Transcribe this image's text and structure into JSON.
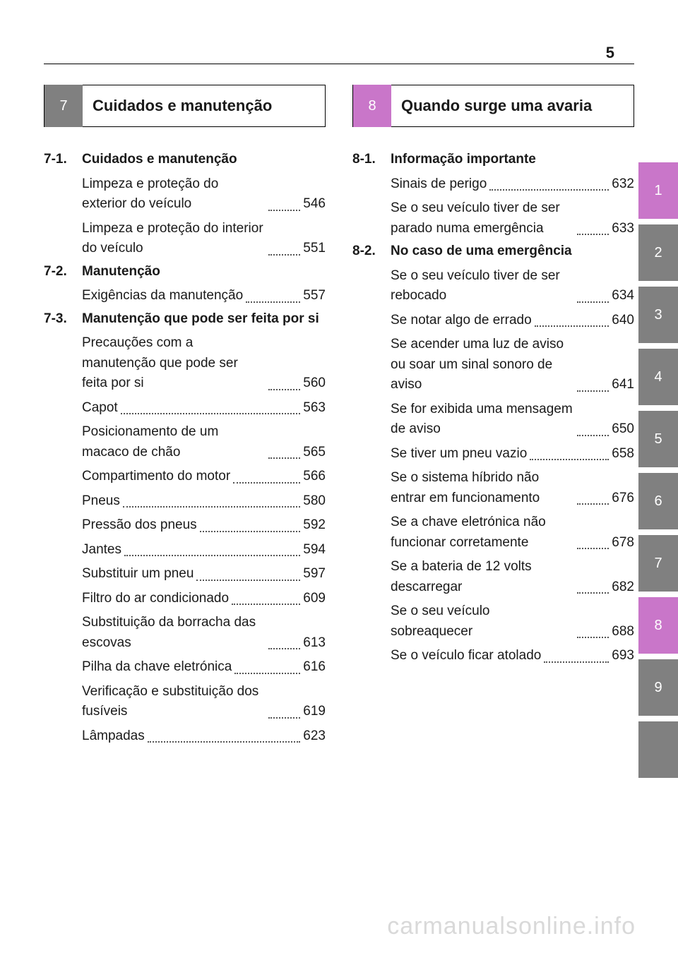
{
  "page_number": "5",
  "colors": {
    "grey": "#808080",
    "accent": "#c976c9",
    "text": "#1a1a1a",
    "watermark": "#d9d9d9"
  },
  "fonts": {
    "base_family": "Arial",
    "title_size": 22,
    "body_size": 19,
    "page_num_size": 22
  },
  "watermark": "carmanualsonline.info",
  "side_tabs": [
    {
      "label": "1",
      "style": "accent"
    },
    {
      "label": "2",
      "style": "grey"
    },
    {
      "label": "3",
      "style": "grey"
    },
    {
      "label": "4",
      "style": "grey"
    },
    {
      "label": "5",
      "style": "grey"
    },
    {
      "label": "6",
      "style": "grey"
    },
    {
      "label": "7",
      "style": "grey"
    },
    {
      "label": "8",
      "style": "accent"
    },
    {
      "label": "9",
      "style": "grey"
    },
    {
      "label": "",
      "style": "grey"
    }
  ],
  "left": {
    "chapter_num": "7",
    "chapter_title": "Cuidados e manutenção",
    "chapter_style": "grey",
    "sections": [
      {
        "num": "7-1.",
        "title": "Cuidados e manutenção",
        "entries": [
          {
            "label": "Limpeza e proteção do exterior do veículo",
            "page": "546"
          },
          {
            "label": "Limpeza e proteção do interior do veículo",
            "page": "551"
          }
        ]
      },
      {
        "num": "7-2.",
        "title": "Manutenção",
        "entries": [
          {
            "label": "Exigências da manutenção",
            "page": "557"
          }
        ]
      },
      {
        "num": "7-3.",
        "title": "Manutenção que pode ser feita por si",
        "entries": [
          {
            "label": "Precauções com a manutenção que pode ser feita por si",
            "page": "560"
          },
          {
            "label": "Capot",
            "page": "563"
          },
          {
            "label": "Posicionamento de um macaco de chão",
            "page": "565"
          },
          {
            "label": "Compartimento do motor",
            "page": "566"
          },
          {
            "label": "Pneus",
            "page": "580"
          },
          {
            "label": "Pressão dos pneus",
            "page": "592"
          },
          {
            "label": "Jantes",
            "page": "594"
          },
          {
            "label": "Substituir um pneu",
            "page": "597"
          },
          {
            "label": "Filtro do ar condicionado",
            "page": "609"
          },
          {
            "label": "Substituição da borracha das escovas",
            "page": "613"
          },
          {
            "label": "Pilha da chave eletrónica",
            "page": "616"
          },
          {
            "label": "Verificação e substituição dos fusíveis",
            "page": "619"
          },
          {
            "label": "Lâmpadas",
            "page": "623"
          }
        ]
      }
    ]
  },
  "right": {
    "chapter_num": "8",
    "chapter_title": "Quando surge uma avaria",
    "chapter_style": "accent",
    "sections": [
      {
        "num": "8-1.",
        "title": "Informação importante",
        "entries": [
          {
            "label": "Sinais de perigo",
            "page": "632"
          },
          {
            "label": "Se o seu veículo tiver de ser parado numa emergência",
            "page": "633"
          }
        ]
      },
      {
        "num": "8-2.",
        "title": "No caso de uma emergência",
        "entries": [
          {
            "label": "Se o seu veículo tiver de ser rebocado",
            "page": "634"
          },
          {
            "label": "Se notar algo de errado",
            "page": "640"
          },
          {
            "label": "Se acender uma luz de aviso ou soar um sinal sonoro de aviso",
            "page": "641"
          },
          {
            "label": "Se for exibida uma mensagem de aviso",
            "page": "650"
          },
          {
            "label": "Se tiver um pneu vazio",
            "page": "658"
          },
          {
            "label": "Se o sistema híbrido não entrar em funcionamento",
            "page": "676"
          },
          {
            "label": "Se a chave eletrónica não funcionar corretamente",
            "page": "678"
          },
          {
            "label": "Se a bateria de 12 volts descarregar",
            "page": "682"
          },
          {
            "label": "Se o seu veículo sobreaquecer",
            "page": "688"
          },
          {
            "label": "Se o veículo ficar atolado",
            "page": "693"
          }
        ]
      }
    ]
  }
}
